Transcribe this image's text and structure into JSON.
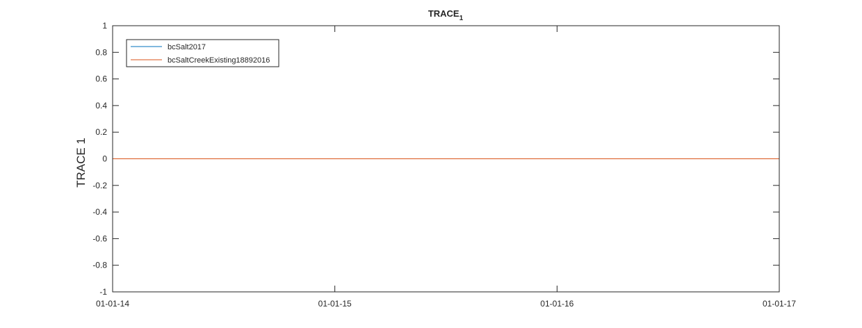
{
  "chart_data": {
    "type": "line",
    "title": "TRACE",
    "title_subscript": "1",
    "xlabel": "",
    "ylabel": "TRACE 1",
    "x_ticks": [
      "01-01-14",
      "01-01-15",
      "01-01-16",
      "01-01-17"
    ],
    "xlim": [
      "01-01-14",
      "01-01-17"
    ],
    "y_ticks": [
      1,
      0.8,
      0.6,
      0.4,
      0.2,
      0,
      -0.2,
      -0.4,
      -0.6,
      -0.8,
      -1
    ],
    "ylim": [
      -1,
      1
    ],
    "grid": false,
    "legend_position": "top-left",
    "series": [
      {
        "name": "bcSalt2017",
        "color": "#0072bd",
        "x": [
          "01-01-14",
          "01-01-17"
        ],
        "values": [
          0,
          0
        ]
      },
      {
        "name": "bcSaltCreekExisting18892016",
        "color": "#d95319",
        "x": [
          "01-01-14",
          "01-01-17"
        ],
        "values": [
          0,
          0
        ]
      }
    ]
  }
}
